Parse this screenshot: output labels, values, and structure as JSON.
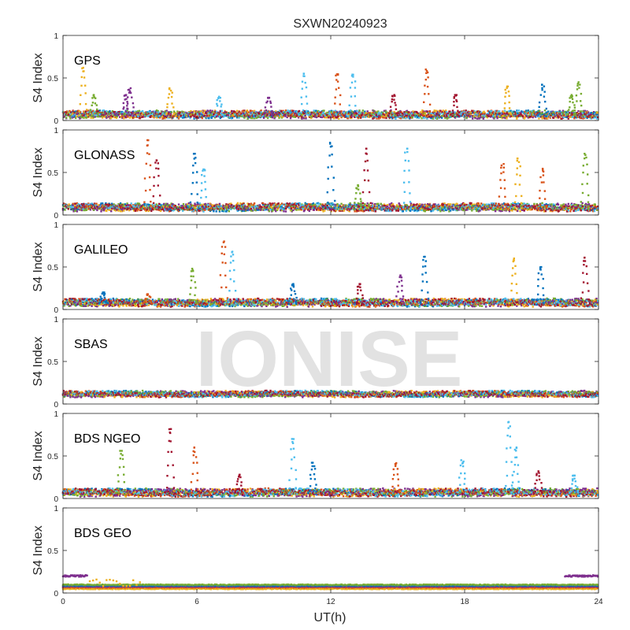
{
  "chart_data": {
    "type": "scatter",
    "title": "SXWN20240923",
    "xlabel": "UT(h)",
    "ylabel": "S4 Index",
    "xlim": [
      0,
      24
    ],
    "ylim": [
      0,
      1
    ],
    "x_ticks": [
      "0",
      "6",
      "12",
      "18",
      "24"
    ],
    "y_ticks": [
      "0",
      "0.5",
      "1"
    ],
    "watermark": "IONISE",
    "grid": false,
    "series_colors": [
      "#0072BD",
      "#D95319",
      "#EDB120",
      "#7E2F8E",
      "#77AC30",
      "#4DBEEE",
      "#A2142F"
    ],
    "panels": [
      {
        "label": "GPS",
        "baseline": 0.06,
        "spikes": [
          {
            "x": 0.9,
            "peak": 0.62,
            "color": 2
          },
          {
            "x": 1.4,
            "peak": 0.3,
            "color": 4
          },
          {
            "x": 2.8,
            "peak": 0.3,
            "color": 3
          },
          {
            "x": 3.0,
            "peak": 0.38,
            "color": 3
          },
          {
            "x": 4.8,
            "peak": 0.38,
            "color": 2
          },
          {
            "x": 7.0,
            "peak": 0.28,
            "color": 5
          },
          {
            "x": 9.2,
            "peak": 0.28,
            "color": 3
          },
          {
            "x": 10.8,
            "peak": 0.55,
            "color": 5
          },
          {
            "x": 12.3,
            "peak": 0.56,
            "color": 1
          },
          {
            "x": 13.0,
            "peak": 0.55,
            "color": 5
          },
          {
            "x": 14.8,
            "peak": 0.3,
            "color": 6
          },
          {
            "x": 16.3,
            "peak": 0.6,
            "color": 1
          },
          {
            "x": 17.6,
            "peak": 0.3,
            "color": 6
          },
          {
            "x": 19.9,
            "peak": 0.4,
            "color": 2
          },
          {
            "x": 21.5,
            "peak": 0.42,
            "color": 0
          },
          {
            "x": 22.8,
            "peak": 0.3,
            "color": 4
          },
          {
            "x": 23.1,
            "peak": 0.45,
            "color": 4
          }
        ]
      },
      {
        "label": "GLONASS",
        "baseline": 0.08,
        "spikes": [
          {
            "x": 3.8,
            "peak": 0.88,
            "color": 1
          },
          {
            "x": 4.2,
            "peak": 0.65,
            "color": 6
          },
          {
            "x": 5.9,
            "peak": 0.72,
            "color": 0
          },
          {
            "x": 6.3,
            "peak": 0.55,
            "color": 5
          },
          {
            "x": 12.0,
            "peak": 0.85,
            "color": 0
          },
          {
            "x": 13.6,
            "peak": 0.78,
            "color": 6
          },
          {
            "x": 13.2,
            "peak": 0.35,
            "color": 4
          },
          {
            "x": 15.4,
            "peak": 0.78,
            "color": 5
          },
          {
            "x": 19.7,
            "peak": 0.6,
            "color": 1
          },
          {
            "x": 20.4,
            "peak": 0.68,
            "color": 2
          },
          {
            "x": 21.5,
            "peak": 0.55,
            "color": 1
          },
          {
            "x": 23.4,
            "peak": 0.72,
            "color": 4
          }
        ]
      },
      {
        "label": "GALILEO",
        "baseline": 0.07,
        "spikes": [
          {
            "x": 1.8,
            "peak": 0.2,
            "color": 0
          },
          {
            "x": 3.8,
            "peak": 0.18,
            "color": 1
          },
          {
            "x": 5.8,
            "peak": 0.48,
            "color": 4
          },
          {
            "x": 7.2,
            "peak": 0.8,
            "color": 1
          },
          {
            "x": 7.6,
            "peak": 0.68,
            "color": 5
          },
          {
            "x": 10.3,
            "peak": 0.3,
            "color": 0
          },
          {
            "x": 13.3,
            "peak": 0.3,
            "color": 6
          },
          {
            "x": 15.1,
            "peak": 0.4,
            "color": 3
          },
          {
            "x": 16.2,
            "peak": 0.62,
            "color": 0
          },
          {
            "x": 20.2,
            "peak": 0.6,
            "color": 2
          },
          {
            "x": 21.4,
            "peak": 0.5,
            "color": 0
          },
          {
            "x": 23.4,
            "peak": 0.62,
            "color": 6
          }
        ]
      },
      {
        "label": "SBAS",
        "baseline": 0.11,
        "spikes": []
      },
      {
        "label": "BDS NGEO",
        "baseline": 0.06,
        "spikes": [
          {
            "x": 2.6,
            "peak": 0.56,
            "color": 4
          },
          {
            "x": 4.8,
            "peak": 0.82,
            "color": 6
          },
          {
            "x": 5.9,
            "peak": 0.6,
            "color": 1
          },
          {
            "x": 7.9,
            "peak": 0.28,
            "color": 6
          },
          {
            "x": 10.3,
            "peak": 0.7,
            "color": 5
          },
          {
            "x": 11.2,
            "peak": 0.42,
            "color": 0
          },
          {
            "x": 14.9,
            "peak": 0.42,
            "color": 1
          },
          {
            "x": 17.9,
            "peak": 0.45,
            "color": 5
          },
          {
            "x": 20.0,
            "peak": 0.9,
            "color": 5
          },
          {
            "x": 20.3,
            "peak": 0.6,
            "color": 5
          },
          {
            "x": 21.3,
            "peak": 0.32,
            "color": 6
          },
          {
            "x": 22.9,
            "peak": 0.28,
            "color": 5
          }
        ]
      },
      {
        "label": "BDS GEO",
        "baseline": 0.08,
        "spikes": []
      }
    ]
  }
}
